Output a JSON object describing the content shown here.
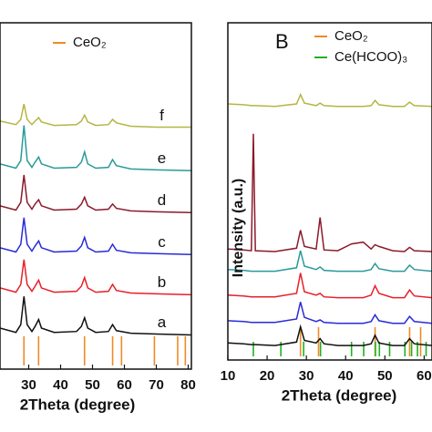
{
  "chart_data": [
    {
      "type": "line",
      "x_label": "2Theta (degree)",
      "x": [
        21,
        26,
        27.5,
        28.5,
        29.5,
        31,
        32,
        33.1,
        34,
        38,
        45,
        46.5,
        47.5,
        48.5,
        51,
        55,
        56.3,
        57.5,
        62,
        70,
        81
      ],
      "xlim": [
        21,
        81
      ],
      "xticks": [
        30,
        40,
        50,
        60,
        70,
        80
      ],
      "ylim": [
        0,
        405
      ],
      "series": [
        {
          "name": "a",
          "color": "#111111",
          "values": [
            48,
            43,
            52,
            85,
            52,
            44,
            50,
            58,
            48,
            43,
            44,
            50,
            60,
            48,
            43,
            44,
            52,
            45,
            42,
            41,
            40
          ]
        },
        {
          "name": "b",
          "color": "#e8202a",
          "values": [
            95,
            90,
            99,
            128,
            99,
            91,
            97,
            104,
            95,
            90,
            91,
            97,
            107,
            95,
            90,
            91,
            99,
            92,
            89,
            88,
            87
          ]
        },
        {
          "name": "c",
          "color": "#2a2ad8",
          "values": [
            142,
            137,
            146,
            177,
            146,
            138,
            144,
            150,
            142,
            137,
            138,
            144,
            154,
            142,
            137,
            138,
            146,
            139,
            136,
            135,
            134
          ]
        },
        {
          "name": "d",
          "color": "#8b1a2b",
          "values": [
            191,
            186,
            195,
            227,
            195,
            187,
            193,
            198,
            191,
            186,
            187,
            193,
            201,
            191,
            186,
            187,
            193,
            188,
            185,
            184,
            183
          ]
        },
        {
          "name": "e",
          "color": "#2a9a9a",
          "values": [
            240,
            235,
            244,
            285,
            244,
            236,
            242,
            248,
            240,
            235,
            236,
            242,
            254,
            240,
            235,
            236,
            245,
            238,
            234,
            233,
            232
          ]
        },
        {
          "name": "f",
          "color": "#b5b545",
          "values": [
            290,
            286,
            292,
            310,
            292,
            286,
            290,
            294,
            289,
            285,
            286,
            290,
            297,
            289,
            285,
            286,
            292,
            288,
            284,
            283,
            283
          ]
        }
      ],
      "references": [
        {
          "name": "CeO₂",
          "color": "#f08a24",
          "positions": [
            28.5,
            33.1,
            47.5,
            56.3,
            59.1,
            69.4,
            76.7,
            79.1
          ]
        }
      ]
    },
    {
      "type": "line",
      "panel_label": "B",
      "x_label": "2Theta (degree)",
      "y_label": "Intensity (a.u.)",
      "x": [
        10,
        14,
        16,
        16.5,
        17,
        22,
        27.5,
        28.5,
        29.5,
        32.5,
        33.5,
        34.5,
        38,
        41.5,
        44.5,
        46.5,
        47.5,
        48.5,
        52,
        55,
        56.3,
        57.5,
        62
      ],
      "xlim": [
        10,
        62
      ],
      "xticks": [
        10,
        20,
        30,
        40,
        50,
        60
      ],
      "ylim": [
        0,
        395
      ],
      "series": [
        {
          "color": "#b5b545",
          "values": [
            300,
            299,
            298,
            298,
            298,
            297,
            300,
            311,
            301,
            298,
            301,
            298,
            297,
            297,
            297,
            298,
            304,
            299,
            297,
            297,
            302,
            298,
            297
          ]
        },
        {
          "color": "#8b1a2b",
          "values": [
            130,
            129,
            128,
            265,
            128,
            127,
            131,
            152,
            133,
            130,
            167,
            129,
            128,
            136,
            138,
            130,
            135,
            133,
            128,
            127,
            132,
            128,
            127
          ]
        },
        {
          "color": "#2a9a9a",
          "values": [
            106,
            105,
            104,
            104,
            104,
            104,
            108,
            128,
            110,
            106,
            109,
            105,
            104,
            104,
            104,
            106,
            113,
            107,
            104,
            104,
            111,
            106,
            104
          ]
        },
        {
          "color": "#e8202a",
          "values": [
            76,
            75,
            74,
            74,
            74,
            74,
            78,
            102,
            80,
            76,
            78,
            74,
            73,
            73,
            73,
            76,
            87,
            78,
            73,
            73,
            82,
            75,
            73
          ]
        },
        {
          "color": "#2a2ad8",
          "values": [
            46,
            45,
            44,
            44,
            44,
            44,
            48,
            68,
            50,
            45,
            47,
            44,
            43,
            43,
            43,
            45,
            53,
            46,
            43,
            43,
            51,
            45,
            43
          ]
        },
        {
          "color": "#111111",
          "values": [
            20,
            19,
            18,
            18,
            18,
            17,
            21,
            39,
            23,
            20,
            25,
            19,
            17,
            17,
            17,
            19,
            29,
            20,
            17,
            17,
            25,
            19,
            17
          ]
        }
      ],
      "references": [
        {
          "name": "CeO₂",
          "color": "#f08a24",
          "positions": [
            28.5,
            33.1,
            47.5,
            56.3,
            59.1
          ]
        },
        {
          "name": "Ce(HCOO)₃",
          "color": "#22b022",
          "positions": [
            16.5,
            23.5,
            29.3,
            33.6,
            41.5,
            44.6,
            47.6,
            48.6,
            51.2,
            55.1,
            56.8,
            58.3,
            60.5
          ]
        }
      ]
    }
  ]
}
